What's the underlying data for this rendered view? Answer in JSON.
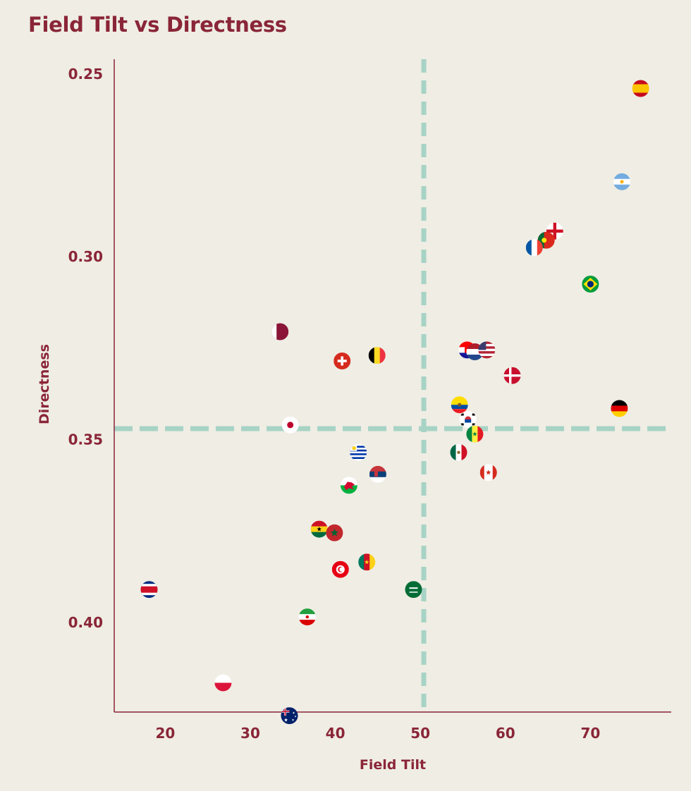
{
  "chart_data": {
    "type": "scatter",
    "title": "Field Tilt vs Directness",
    "xlabel": "Field Tilt",
    "ylabel": "Directness",
    "xlim": [
      14,
      79.5
    ],
    "ylim": [
      0.246,
      0.4245
    ],
    "y_inverted": true,
    "x_ticks": [
      "20",
      "30",
      "40",
      "50",
      "60",
      "70"
    ],
    "y_ticks": [
      "0.25",
      "0.30",
      "0.35",
      "0.40"
    ],
    "reference_lines": {
      "x": 50.4,
      "y": 0.347
    },
    "grid": false,
    "marker": "country flag",
    "points": [
      {
        "flag": "spain",
        "x": 75.9,
        "y": 0.254
      },
      {
        "flag": "argentina",
        "x": 73.7,
        "y": 0.2795
      },
      {
        "flag": "england",
        "x": 65.8,
        "y": 0.293
      },
      {
        "flag": "portugal",
        "x": 64.8,
        "y": 0.2955
      },
      {
        "flag": "france",
        "x": 63.4,
        "y": 0.2975
      },
      {
        "flag": "brazil",
        "x": 70.0,
        "y": 0.3075
      },
      {
        "flag": "qatar",
        "x": 33.5,
        "y": 0.3205
      },
      {
        "flag": "switzerland",
        "x": 40.8,
        "y": 0.3285
      },
      {
        "flag": "belgium",
        "x": 44.9,
        "y": 0.327
      },
      {
        "flag": "croatia",
        "x": 55.5,
        "y": 0.3255
      },
      {
        "flag": "netherlands",
        "x": 56.4,
        "y": 0.326
      },
      {
        "flag": "usa",
        "x": 57.8,
        "y": 0.3255
      },
      {
        "flag": "denmark",
        "x": 60.8,
        "y": 0.3325
      },
      {
        "flag": "ecuador",
        "x": 54.6,
        "y": 0.3405
      },
      {
        "flag": "germany",
        "x": 73.4,
        "y": 0.3415
      },
      {
        "flag": "japan",
        "x": 34.7,
        "y": 0.346
      },
      {
        "flag": "south-korea",
        "x": 55.6,
        "y": 0.3445
      },
      {
        "flag": "senegal",
        "x": 56.4,
        "y": 0.3485
      },
      {
        "flag": "mexico",
        "x": 54.5,
        "y": 0.3535
      },
      {
        "flag": "uruguay",
        "x": 42.7,
        "y": 0.3535
      },
      {
        "flag": "serbia",
        "x": 45.0,
        "y": 0.3595
      },
      {
        "flag": "canada",
        "x": 58.0,
        "y": 0.359
      },
      {
        "flag": "wales",
        "x": 41.6,
        "y": 0.3625
      },
      {
        "flag": "ghana",
        "x": 38.1,
        "y": 0.3745
      },
      {
        "flag": "morocco",
        "x": 39.9,
        "y": 0.3755
      },
      {
        "flag": "cameroon",
        "x": 43.7,
        "y": 0.3835
      },
      {
        "flag": "tunisia",
        "x": 40.6,
        "y": 0.3855
      },
      {
        "flag": "saudi-arabia",
        "x": 49.2,
        "y": 0.391
      },
      {
        "flag": "costa-rica",
        "x": 18.1,
        "y": 0.391
      },
      {
        "flag": "iran",
        "x": 36.7,
        "y": 0.3985
      },
      {
        "flag": "poland",
        "x": 26.8,
        "y": 0.4165
      },
      {
        "flag": "australia",
        "x": 34.6,
        "y": 0.4255
      }
    ]
  },
  "colors": {
    "background": "#efede4",
    "text": "#8a2537",
    "axis": "#8a2537",
    "reference_line": "#a7d3c5"
  }
}
